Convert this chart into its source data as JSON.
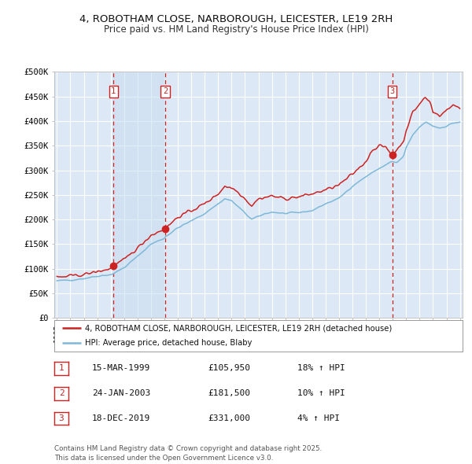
{
  "title_line1": "4, ROBOTHAM CLOSE, NARBOROUGH, LEICESTER, LE19 2RH",
  "title_line2": "Price paid vs. HM Land Registry's House Price Index (HPI)",
  "ylim": [
    0,
    500000
  ],
  "yticks": [
    0,
    50000,
    100000,
    150000,
    200000,
    250000,
    300000,
    350000,
    400000,
    450000,
    500000
  ],
  "ytick_labels": [
    "£0",
    "£50K",
    "£100K",
    "£150K",
    "£200K",
    "£250K",
    "£300K",
    "£350K",
    "£400K",
    "£450K",
    "£500K"
  ],
  "start_year": 1995,
  "end_year": 2025,
  "background_color": "#ffffff",
  "plot_bg_color": "#dce8f5",
  "grid_color": "#ffffff",
  "hpi_color": "#7db8d8",
  "price_color": "#cc2222",
  "sale1_date_num": 1999.21,
  "sale1_price": 105950,
  "sale2_date_num": 2003.07,
  "sale2_price": 181500,
  "sale3_date_num": 2019.96,
  "sale3_price": 331000,
  "legend_label_price": "4, ROBOTHAM CLOSE, NARBOROUGH, LEICESTER, LE19 2RH (detached house)",
  "legend_label_hpi": "HPI: Average price, detached house, Blaby",
  "footnote": "Contains HM Land Registry data © Crown copyright and database right 2025.\nThis data is licensed under the Open Government Licence v3.0.",
  "table_rows": [
    [
      "1",
      "15-MAR-1999",
      "£105,950",
      "18% ↑ HPI"
    ],
    [
      "2",
      "24-JAN-2003",
      "£181,500",
      "10% ↑ HPI"
    ],
    [
      "3",
      "18-DEC-2019",
      "£331,000",
      "4% ↑ HPI"
    ]
  ],
  "hpi_anchors_x": [
    1995.0,
    1996.0,
    1997.0,
    1998.0,
    1999.0,
    1999.21,
    2000.0,
    2001.0,
    2002.0,
    2003.0,
    2003.07,
    2004.0,
    2005.0,
    2006.0,
    2007.0,
    2007.5,
    2008.0,
    2008.8,
    2009.5,
    2010.5,
    2011.0,
    2012.0,
    2013.0,
    2014.0,
    2015.0,
    2016.0,
    2017.0,
    2018.0,
    2019.0,
    2019.96,
    2020.3,
    2020.8,
    2021.0,
    2021.5,
    2022.0,
    2022.5,
    2023.0,
    2023.5,
    2024.0,
    2024.5,
    2025.0
  ],
  "hpi_anchors_y": [
    75000,
    77000,
    80000,
    85000,
    88000,
    90000,
    102000,
    125000,
    150000,
    162000,
    165000,
    183000,
    197000,
    212000,
    232000,
    242000,
    238000,
    218000,
    200000,
    212000,
    215000,
    212000,
    214000,
    218000,
    232000,
    243000,
    268000,
    287000,
    304000,
    318000,
    315000,
    328000,
    345000,
    372000,
    388000,
    398000,
    390000,
    386000,
    390000,
    396000,
    398000
  ],
  "price_anchors_x": [
    1995.0,
    1996.0,
    1997.0,
    1998.0,
    1999.0,
    1999.21,
    2000.0,
    2001.0,
    2002.0,
    2002.8,
    2003.07,
    2004.0,
    2005.0,
    2006.0,
    2007.0,
    2007.5,
    2008.2,
    2008.8,
    2009.5,
    2010.0,
    2011.0,
    2012.0,
    2013.0,
    2014.0,
    2015.0,
    2016.0,
    2017.0,
    2018.0,
    2018.5,
    2019.0,
    2019.5,
    2019.96,
    2020.3,
    2020.8,
    2021.0,
    2021.5,
    2022.0,
    2022.4,
    2022.8,
    2023.0,
    2023.5,
    2024.0,
    2024.5,
    2025.0
  ],
  "price_anchors_y": [
    82000,
    85000,
    88000,
    94000,
    100000,
    105950,
    118000,
    142000,
    168000,
    178000,
    181500,
    205000,
    218000,
    232000,
    252000,
    268000,
    262000,
    248000,
    228000,
    242000,
    248000,
    242000,
    246000,
    252000,
    260000,
    270000,
    292000,
    318000,
    342000,
    350000,
    346000,
    331000,
    342000,
    358000,
    382000,
    418000,
    435000,
    448000,
    438000,
    418000,
    412000,
    422000,
    432000,
    428000
  ]
}
